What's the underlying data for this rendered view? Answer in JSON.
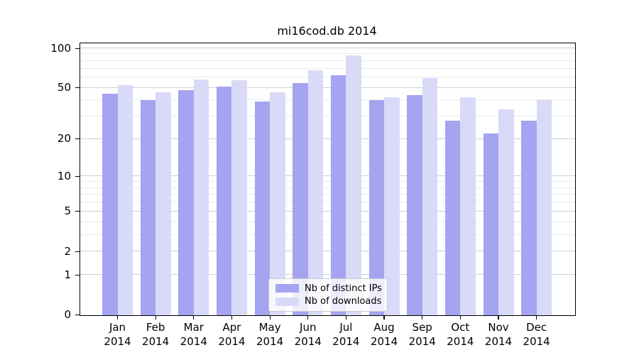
{
  "title": "mi16cod.db 2014",
  "chart_data": {
    "type": "bar",
    "title": "mi16cod.db 2014",
    "categories": [
      "Jan",
      "Feb",
      "Mar",
      "Apr",
      "May",
      "Jun",
      "Jul",
      "Aug",
      "Sep",
      "Oct",
      "Nov",
      "Dec"
    ],
    "year": "2014",
    "series": [
      {
        "name": "Nb of distinct IPs",
        "color": "#a4a4f0",
        "values": [
          45,
          40,
          48,
          51,
          39,
          54,
          62,
          40,
          44,
          28,
          22,
          28
        ]
      },
      {
        "name": "Nb of downloads",
        "color": "#d9d9f8",
        "values": [
          52,
          46,
          58,
          57,
          46,
          68,
          88,
          42,
          59,
          42,
          34,
          40
        ]
      }
    ],
    "y_scale": "log1p",
    "y_tick_labels": [
      "0",
      "1",
      "2",
      "5",
      "10",
      "20",
      "50",
      "100"
    ],
    "y_ticks": [
      0,
      1,
      2,
      5,
      10,
      20,
      50,
      100
    ],
    "y_minor_gridlines": [
      3,
      4,
      6,
      7,
      8,
      9,
      30,
      40,
      60,
      70,
      80,
      90
    ],
    "ylim": [
      0,
      101
    ],
    "grid": true,
    "legend_position": "lower center"
  },
  "colors": {
    "background": "#ffffff",
    "spine": "#000000",
    "major_gridline": "#cfcfcf",
    "minor_gridline": "#ebebeb",
    "legend_border": "#cccccc"
  }
}
